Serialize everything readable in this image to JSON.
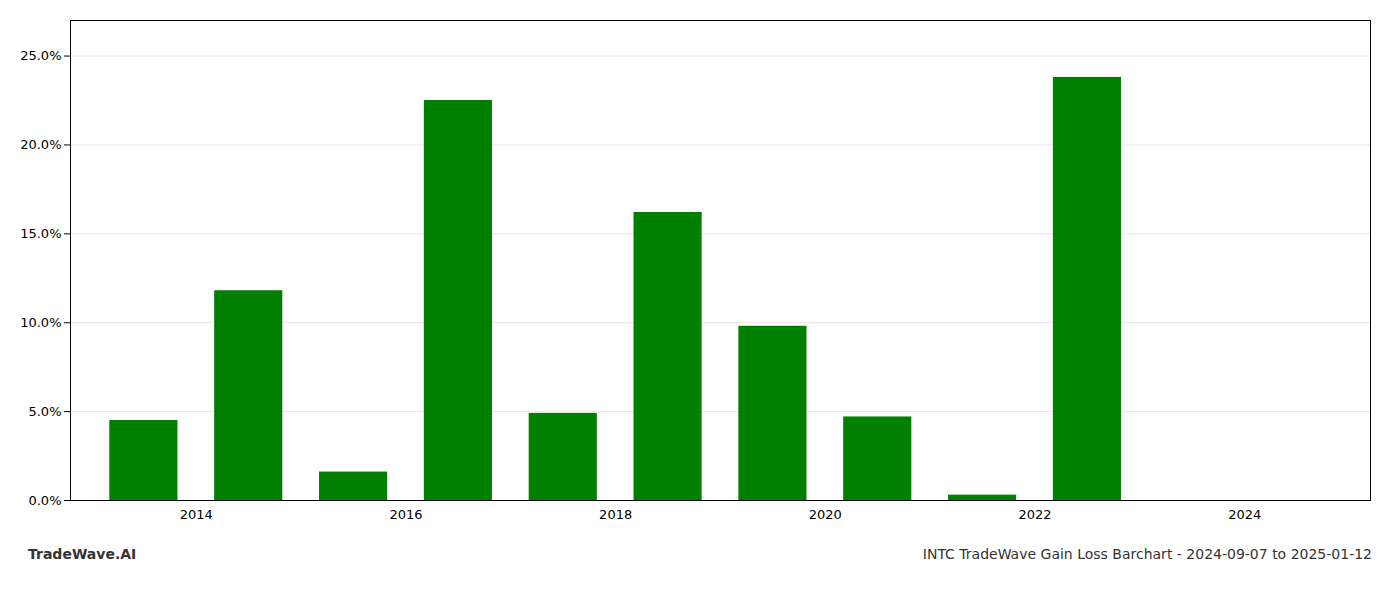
{
  "chart_data": {
    "type": "bar",
    "title": "INTC TradeWave Gain Loss Barchart - 2024-09-07 to 2025-01-12",
    "annotations": [
      "TradeWave.AI"
    ],
    "x": [
      2013,
      2014,
      2015,
      2016,
      2017,
      2018,
      2019,
      2020,
      2021,
      2022,
      2023
    ],
    "values": [
      4.5,
      11.8,
      1.6,
      22.5,
      4.9,
      16.2,
      9.8,
      4.7,
      0.3,
      23.8,
      0.0
    ],
    "color": "#008000",
    "xlim": [
      2012.3,
      2024.7
    ],
    "xticks": [
      {
        "value": 2013.5,
        "label": "2014"
      },
      {
        "value": 2015.5,
        "label": "2016"
      },
      {
        "value": 2017.5,
        "label": "2018"
      },
      {
        "value": 2019.5,
        "label": "2020"
      },
      {
        "value": 2021.5,
        "label": "2022"
      },
      {
        "value": 2023.5,
        "label": "2024"
      }
    ],
    "ylim": [
      0,
      27
    ],
    "yticks": [
      {
        "value": 0.0,
        "label": "0.0%"
      },
      {
        "value": 5.0,
        "label": "5.0%"
      },
      {
        "value": 10.0,
        "label": "10.0%"
      },
      {
        "value": 15.0,
        "label": "15.0%"
      },
      {
        "value": 20.0,
        "label": "20.0%"
      },
      {
        "value": 25.0,
        "label": "25.0%"
      }
    ],
    "grid": true
  }
}
